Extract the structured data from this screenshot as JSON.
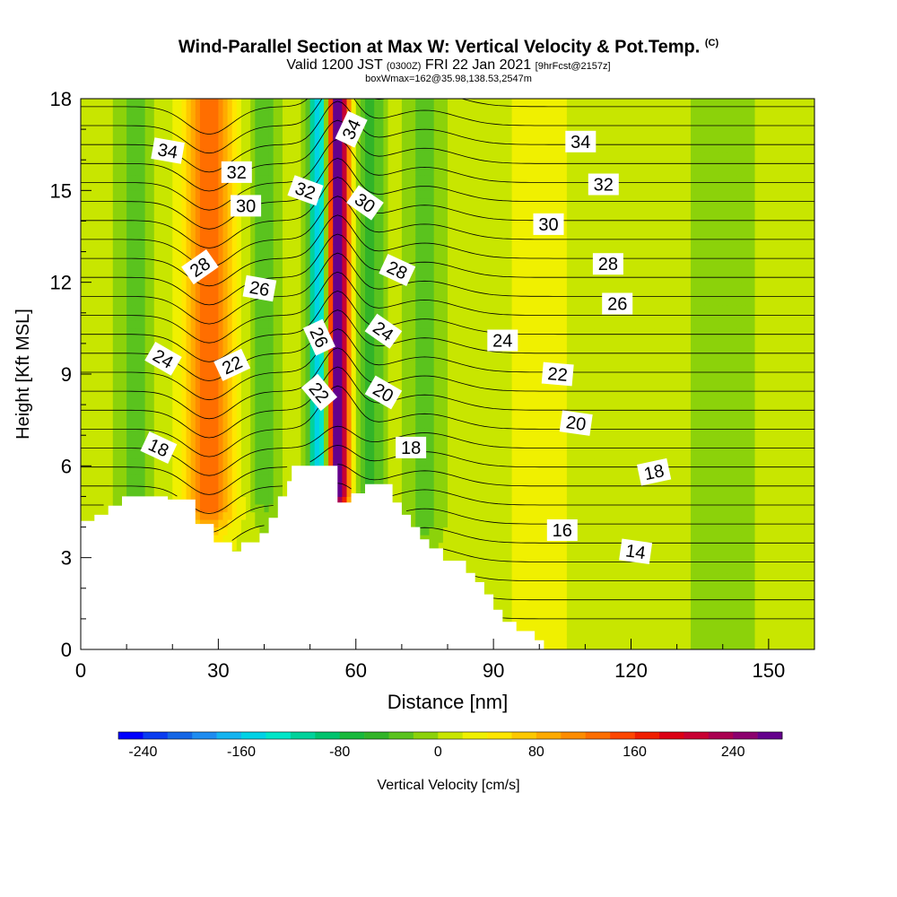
{
  "title": {
    "main": "Wind-Parallel Section at Max W: Vertical Velocity & Pot.Temp.",
    "copyright": "(C)",
    "valid_prefix": "Valid 1200 JST",
    "valid_utc": "(0300Z)",
    "valid_date": "FRI 22 Jan 2021",
    "forecast": "[9hrFcst@2157z]",
    "box_info": "boxWmax=162@35.98,138.53,2547m"
  },
  "chart_data": {
    "type": "contour",
    "xlabel": "Distance [nm]",
    "ylabel": "Height [Kft MSL]",
    "xlim": [
      0,
      160
    ],
    "ylim": [
      0,
      18
    ],
    "x_ticks": [
      "0",
      "30",
      "60",
      "90",
      "120",
      "150"
    ],
    "x_tick_values": [
      0,
      30,
      60,
      90,
      120,
      150
    ],
    "y_ticks": [
      "0",
      "3",
      "6",
      "9",
      "12",
      "15",
      "18"
    ],
    "y_tick_values": [
      0,
      3,
      6,
      9,
      12,
      15,
      18
    ],
    "colorbar": {
      "label": "Vertical Velocity [cm/s]",
      "min": -260,
      "max": 280,
      "step": 20,
      "tick_labels": [
        "-240",
        "-160",
        "-80",
        "0",
        "80",
        "160",
        "240"
      ],
      "tick_values": [
        -240,
        -160,
        -80,
        0,
        80,
        160,
        240
      ],
      "colors": [
        "#0000ff",
        "#0a3cf0",
        "#1466e6",
        "#1e8cf0",
        "#14b4f0",
        "#00d2e6",
        "#00e6c8",
        "#00d29b",
        "#00c36e",
        "#19b93c",
        "#32b428",
        "#5ac31e",
        "#8cd20a",
        "#c8e600",
        "#f0f000",
        "#ffe600",
        "#ffc800",
        "#ffaa00",
        "#ff8c00",
        "#ff6e00",
        "#ff4600",
        "#f01e00",
        "#dc0014",
        "#c80032",
        "#aa0050",
        "#8c006e",
        "#64008c"
      ]
    },
    "velocity_features": [
      {
        "x": 52,
        "zmin": 5.5,
        "zmax": 18,
        "w_max": -180,
        "width": 2.2
      },
      {
        "x": 56,
        "zmin": 5.0,
        "zmax": 18,
        "w_max": 280,
        "width": 2.5
      },
      {
        "x": 63,
        "zmin": 5.0,
        "zmax": 18,
        "w_max": -60,
        "width": 3.0
      },
      {
        "x": 28,
        "zmin": 4.5,
        "zmax": 18,
        "w_max": 120,
        "width": 5.5
      },
      {
        "x": 40,
        "zmin": 5.0,
        "zmax": 18,
        "w_max": -50,
        "width": 3.5
      },
      {
        "x": 12,
        "zmin": 4.0,
        "zmax": 18,
        "w_max": -40,
        "width": 4.0
      },
      {
        "x": 75,
        "zmin": 4.0,
        "zmax": 18,
        "w_max": -40,
        "width": 4.0
      },
      {
        "x": 100,
        "zmin": 0.0,
        "zmax": 18,
        "w_max": 30,
        "width": 6.0
      },
      {
        "x": 140,
        "zmin": 0.0,
        "zmax": 18,
        "w_max": -30,
        "width": 7.0
      }
    ],
    "terrain_kft": [
      [
        0,
        4.2
      ],
      [
        3,
        4.2
      ],
      [
        3,
        4.4
      ],
      [
        6,
        4.4
      ],
      [
        6,
        4.7
      ],
      [
        9,
        4.7
      ],
      [
        9,
        5.0
      ],
      [
        19,
        5.0
      ],
      [
        19,
        4.9
      ],
      [
        25,
        4.9
      ],
      [
        25,
        4.1
      ],
      [
        29,
        4.1
      ],
      [
        29,
        3.5
      ],
      [
        33,
        3.5
      ],
      [
        33,
        3.2
      ],
      [
        35,
        3.2
      ],
      [
        35,
        3.5
      ],
      [
        39,
        3.5
      ],
      [
        39,
        3.8
      ],
      [
        41,
        3.8
      ],
      [
        41,
        4.3
      ],
      [
        43,
        4.3
      ],
      [
        43,
        5.0
      ],
      [
        45,
        5.0
      ],
      [
        45,
        5.5
      ],
      [
        46,
        5.5
      ],
      [
        46,
        6.0
      ],
      [
        56,
        6.0
      ],
      [
        56,
        4.8
      ],
      [
        59,
        4.8
      ],
      [
        59,
        5.1
      ],
      [
        62,
        5.1
      ],
      [
        62,
        5.4
      ],
      [
        68,
        5.4
      ],
      [
        68,
        4.8
      ],
      [
        70,
        4.8
      ],
      [
        70,
        4.4
      ],
      [
        72,
        4.4
      ],
      [
        72,
        4.0
      ],
      [
        74,
        4.0
      ],
      [
        74,
        3.6
      ],
      [
        76,
        3.6
      ],
      [
        76,
        3.3
      ],
      [
        79,
        3.3
      ],
      [
        79,
        2.9
      ],
      [
        84,
        2.9
      ],
      [
        84,
        2.5
      ],
      [
        86,
        2.5
      ],
      [
        86,
        2.2
      ],
      [
        88,
        2.2
      ],
      [
        88,
        1.8
      ],
      [
        90,
        1.8
      ],
      [
        90,
        1.3
      ],
      [
        92,
        1.3
      ],
      [
        92,
        0.9
      ],
      [
        95,
        0.9
      ],
      [
        95,
        0.6
      ],
      [
        99,
        0.6
      ],
      [
        99,
        0.3
      ],
      [
        101,
        0.3
      ],
      [
        101,
        0.0
      ],
      [
        160,
        0.0
      ]
    ],
    "theta_contours": {
      "units": "C",
      "interval": 1,
      "levels_min": 9,
      "levels_max": 36,
      "labels": [
        {
          "text": "34",
          "x": 19,
          "y": 16.3,
          "angle": 10
        },
        {
          "text": "32",
          "x": 34,
          "y": 15.6,
          "angle": 0
        },
        {
          "text": "30",
          "x": 36,
          "y": 14.5,
          "angle": 0
        },
        {
          "text": "28",
          "x": 26,
          "y": 12.5,
          "angle": -35
        },
        {
          "text": "26",
          "x": 39,
          "y": 11.8,
          "angle": 10
        },
        {
          "text": "24",
          "x": 18,
          "y": 9.5,
          "angle": 30
        },
        {
          "text": "22",
          "x": 33,
          "y": 9.3,
          "angle": -25
        },
        {
          "text": "18",
          "x": 17,
          "y": 6.6,
          "angle": 25
        },
        {
          "text": "32",
          "x": 49,
          "y": 15.0,
          "angle": 20
        },
        {
          "text": "34",
          "x": 59,
          "y": 17.0,
          "angle": -65
        },
        {
          "text": "30",
          "x": 62,
          "y": 14.6,
          "angle": 35
        },
        {
          "text": "28",
          "x": 69,
          "y": 12.4,
          "angle": 25
        },
        {
          "text": "26",
          "x": 52,
          "y": 10.2,
          "angle": 65
        },
        {
          "text": "24",
          "x": 66,
          "y": 10.4,
          "angle": 35
        },
        {
          "text": "22",
          "x": 52,
          "y": 8.4,
          "angle": 50
        },
        {
          "text": "20",
          "x": 66,
          "y": 8.4,
          "angle": 30
        },
        {
          "text": "18",
          "x": 72,
          "y": 6.6,
          "angle": 0
        },
        {
          "text": "34",
          "x": 109,
          "y": 16.6,
          "angle": 0
        },
        {
          "text": "32",
          "x": 114,
          "y": 15.2,
          "angle": 0
        },
        {
          "text": "30",
          "x": 102,
          "y": 13.9,
          "angle": 0
        },
        {
          "text": "28",
          "x": 115,
          "y": 12.6,
          "angle": 0
        },
        {
          "text": "26",
          "x": 117,
          "y": 11.3,
          "angle": 0
        },
        {
          "text": "24",
          "x": 92,
          "y": 10.1,
          "angle": 0
        },
        {
          "text": "22",
          "x": 104,
          "y": 9.0,
          "angle": 5
        },
        {
          "text": "20",
          "x": 108,
          "y": 7.4,
          "angle": 8
        },
        {
          "text": "18",
          "x": 125,
          "y": 5.8,
          "angle": -12
        },
        {
          "text": "16",
          "x": 105,
          "y": 3.9,
          "angle": 0
        },
        {
          "text": "14",
          "x": 121,
          "y": 3.2,
          "angle": 8
        }
      ]
    }
  }
}
